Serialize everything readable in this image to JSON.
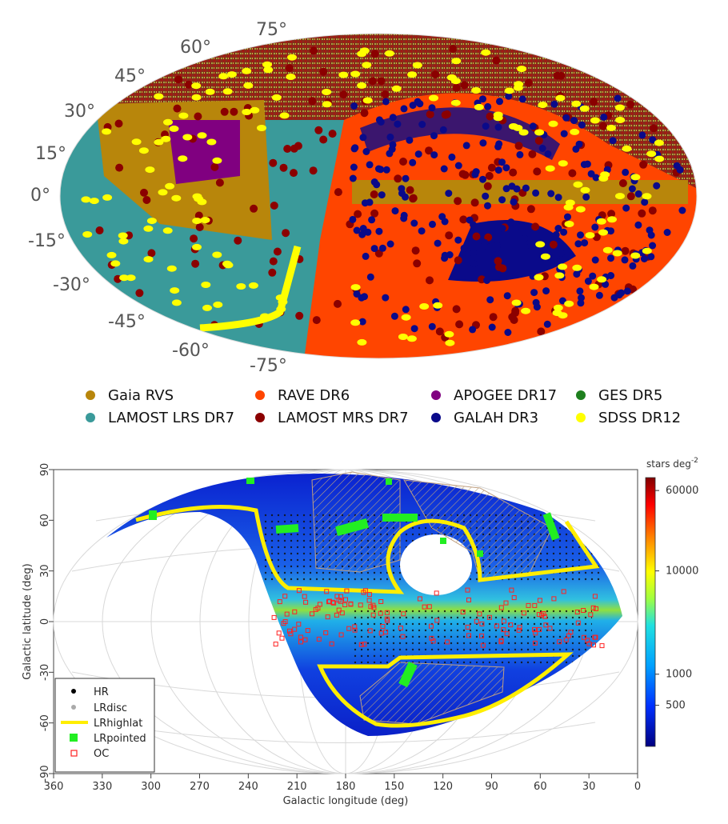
{
  "chart_data": [
    {
      "type": "scatter",
      "projection": "mollweide",
      "latitude_tick_labels": [
        "75°",
        "60°",
        "45°",
        "30°",
        "15°",
        "0°",
        "-15°",
        "-30°",
        "-45°",
        "-60°",
        "-75°"
      ],
      "legend_placement": "bottom",
      "legend": [
        {
          "name": "Gaia RVS",
          "color": "#b8860b"
        },
        {
          "name": "RAVE DR6",
          "color": "#ff4500"
        },
        {
          "name": "APOGEE DR17",
          "color": "#800080"
        },
        {
          "name": "GES DR5",
          "color": "#1e7f1e"
        },
        {
          "name": "LAMOST LRS DR7",
          "color": "#3a9a9a"
        },
        {
          "name": "LAMOST MRS DR7",
          "color": "#8b0000"
        },
        {
          "name": "GALAH DR3",
          "color": "#0a0a8a"
        },
        {
          "name": "SDSS DR12",
          "color": "#ffff00"
        }
      ]
    },
    {
      "type": "heatmap",
      "projection": "aitoff",
      "xlabel": "Galactic longitude (deg)",
      "ylabel": "Galactic latitude (deg)",
      "xlim": [
        360,
        0
      ],
      "ylim": [
        -90,
        90
      ],
      "x_ticks": [
        360,
        330,
        300,
        270,
        240,
        210,
        180,
        150,
        120,
        90,
        60,
        30,
        0
      ],
      "y_ticks": [
        90,
        60,
        30,
        0,
        -30,
        -60,
        -90
      ],
      "grid": true,
      "colorbar": {
        "label": "stars deg",
        "label_exponent": "-2",
        "tick_labels": [
          "60000",
          "10000",
          "1000",
          "500"
        ],
        "tick_values": [
          60000,
          10000,
          1000,
          500
        ],
        "range": [
          200,
          80000
        ],
        "scale": "log"
      },
      "legend_placement": "bottom-left",
      "legend": [
        {
          "name": "HR",
          "color": "#000000",
          "marker": "dot"
        },
        {
          "name": "LRdisc",
          "color": "#aaaaaa",
          "marker": "dot"
        },
        {
          "name": "LRhighlat",
          "color": "#ffff00",
          "marker": "line"
        },
        {
          "name": "LRpointed",
          "color": "#22ee22",
          "marker": "square"
        },
        {
          "name": "OC",
          "color": "#ff2222",
          "marker": "open-square"
        }
      ]
    }
  ]
}
